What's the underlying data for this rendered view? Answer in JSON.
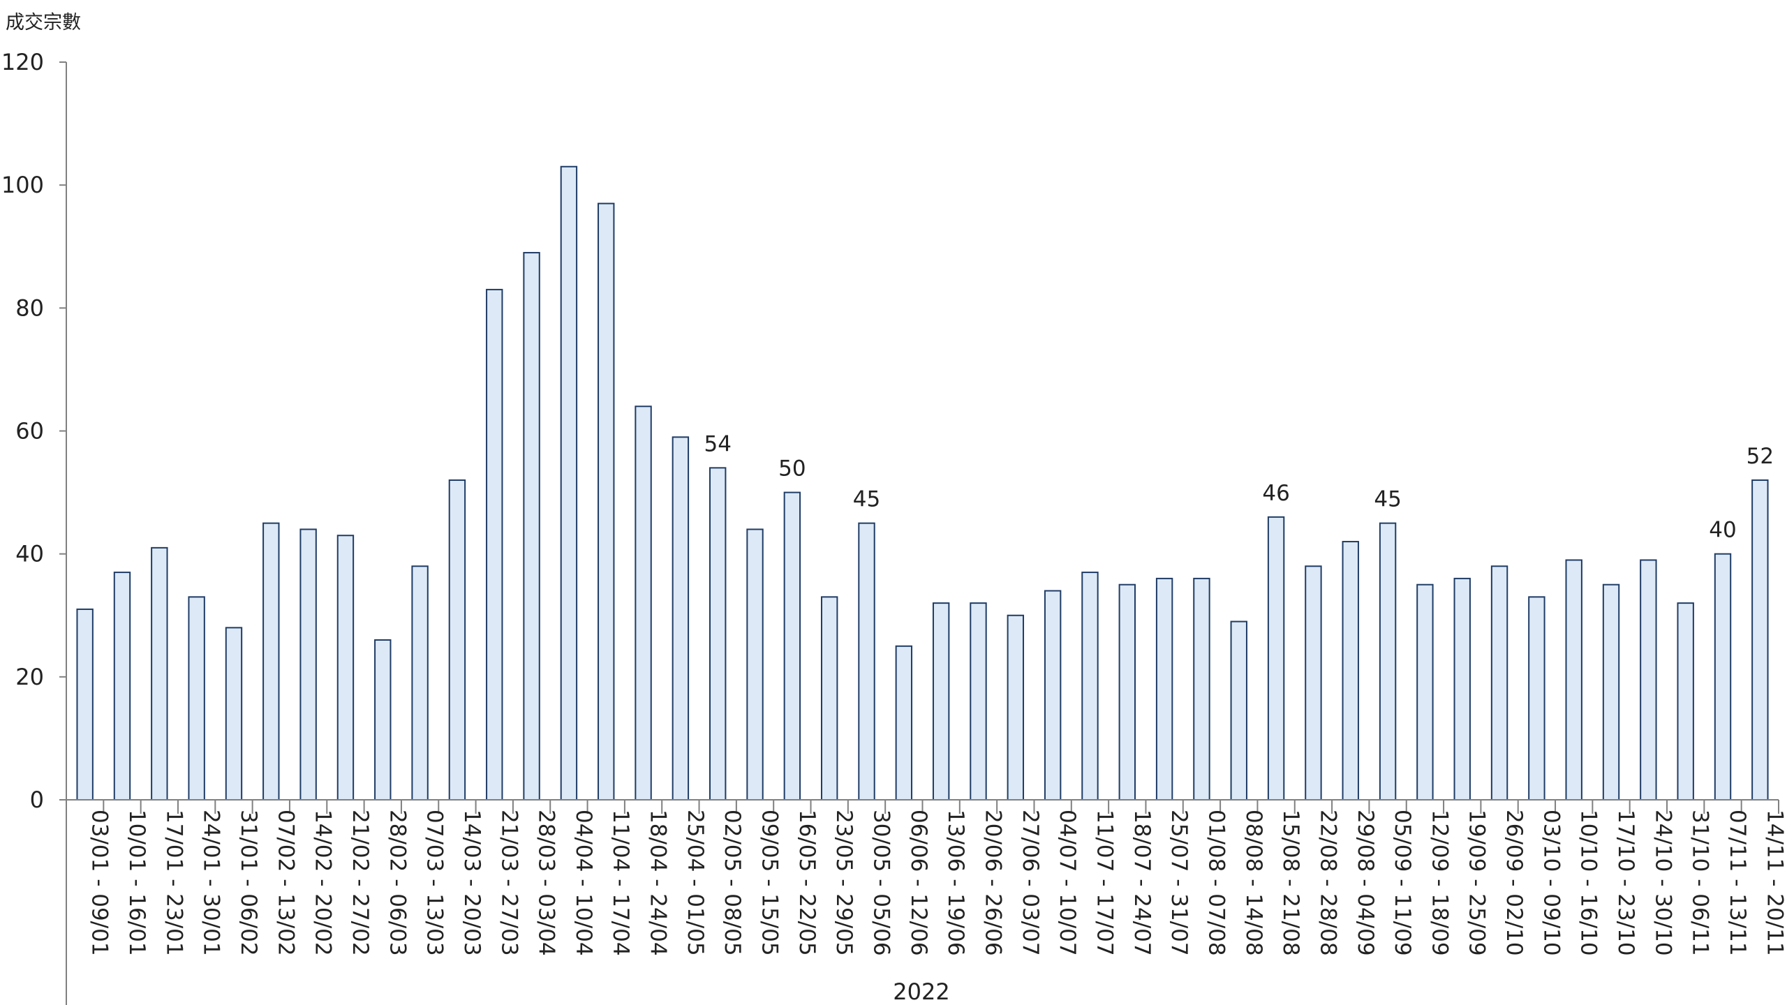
{
  "chart_data": {
    "type": "bar",
    "ylabel": "成交宗數",
    "group_label": "2022",
    "ylim": [
      0,
      120
    ],
    "yticks": [
      "0",
      "20",
      "40",
      "60",
      "80",
      "100",
      "120"
    ],
    "grid": false,
    "bar_fill": "#dde9f6",
    "bar_stroke": "#1f3c66",
    "axis_color": "#808080",
    "categories": [
      "03/01 - 09/01",
      "10/01 - 16/01",
      "17/01 - 23/01",
      "24/01 - 30/01",
      "31/01 - 06/02",
      "07/02 - 13/02",
      "14/02 - 20/02",
      "21/02 - 27/02",
      "28/02 - 06/03",
      "07/03 - 13/03",
      "14/03 - 20/03",
      "21/03 - 27/03",
      "28/03 - 03/04",
      "04/04 - 10/04",
      "11/04 - 17/04",
      "18/04 - 24/04",
      "25/04 - 01/05",
      "02/05 - 08/05",
      "09/05 - 15/05",
      "16/05 - 22/05",
      "23/05 - 29/05",
      "30/05 - 05/06",
      "06/06 - 12/06",
      "13/06 - 19/06",
      "20/06 - 26/06",
      "27/06 - 03/07",
      "04/07 - 10/07",
      "11/07 - 17/07",
      "18/07 - 24/07",
      "25/07 - 31/07",
      "01/08 - 07/08",
      "08/08 - 14/08",
      "15/08 - 21/08",
      "22/08 - 28/08",
      "29/08 - 04/09",
      "05/09 - 11/09",
      "12/09 - 18/09",
      "19/09 - 25/09",
      "26/09 - 02/10",
      "03/10 - 09/10",
      "10/10 - 16/10",
      "17/10 - 23/10",
      "24/10 - 30/10",
      "31/10 - 06/11",
      "07/11 - 13/11",
      "14/11 - 20/11"
    ],
    "values": [
      31,
      37,
      41,
      33,
      28,
      45,
      44,
      43,
      26,
      38,
      52,
      83,
      89,
      103,
      97,
      64,
      59,
      54,
      44,
      50,
      33,
      45,
      25,
      32,
      32,
      30,
      34,
      37,
      35,
      36,
      36,
      29,
      46,
      38,
      42,
      45,
      35,
      36,
      38,
      33,
      39,
      35,
      39,
      32,
      40,
      52
    ],
    "data_labels": [
      {
        "index": 17,
        "text": "54"
      },
      {
        "index": 19,
        "text": "50"
      },
      {
        "index": 21,
        "text": "45"
      },
      {
        "index": 32,
        "text": "46"
      },
      {
        "index": 35,
        "text": "45"
      },
      {
        "index": 44,
        "text": "40"
      },
      {
        "index": 45,
        "text": "52"
      }
    ]
  }
}
